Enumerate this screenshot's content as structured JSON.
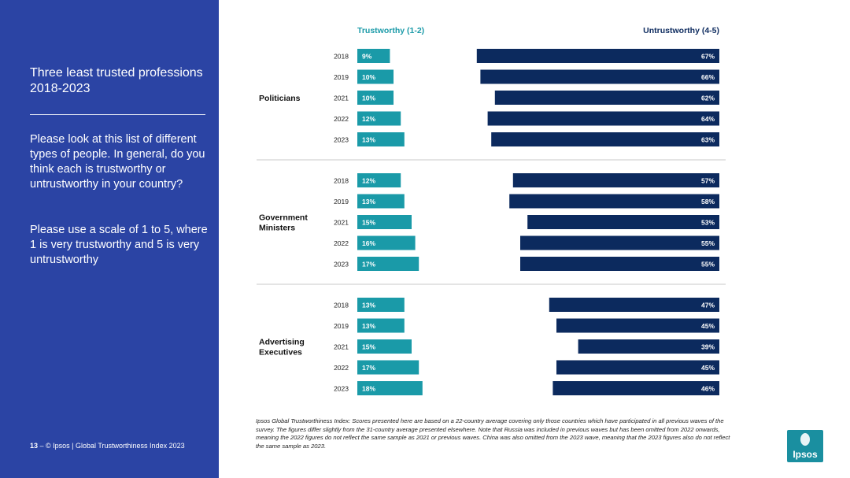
{
  "sidebar": {
    "title": "Three least trusted professions 2018-2023",
    "question": "Please look at this list of different types of people. In general, do you think each is trustworthy or untrustworthy in your country?",
    "scale": "Please use a scale of 1 to 5, where 1 is very trustworthy and 5 is very untrustworthy",
    "page_number": "13",
    "footer_text": "– © Ipsos | Global Trustworthiness Index 2023"
  },
  "headers": {
    "trustworthy": "Trustworthy (1-2)",
    "untrustworthy": "Untrustworthy (4-5)"
  },
  "colors": {
    "trustworthy": "#1a9aa8",
    "untrustworthy": "#0c2a5e",
    "sidebar": "#2b44a4"
  },
  "chart_data": {
    "type": "bar",
    "title": "Three least trusted professions 2018-2023",
    "years": [
      "2018",
      "2019",
      "2021",
      "2022",
      "2023"
    ],
    "groups": [
      {
        "name": "Politicians",
        "trustworthy": [
          9,
          10,
          10,
          12,
          13
        ],
        "untrustworthy": [
          67,
          66,
          62,
          64,
          63
        ]
      },
      {
        "name": "Government Ministers",
        "trustworthy": [
          12,
          13,
          15,
          16,
          17
        ],
        "untrustworthy": [
          57,
          58,
          53,
          55,
          55
        ]
      },
      {
        "name": "Advertising Executives",
        "trustworthy": [
          13,
          13,
          15,
          17,
          18
        ],
        "untrustworthy": [
          47,
          45,
          39,
          45,
          46
        ]
      }
    ],
    "value_suffix": "%"
  },
  "footnote": "Ipsos Global Trustworthiness Index: Scores presented here are based on a 22-country average covering only those countries which have participated in all previous waves of the survey. The figures differ slightly from the 31-country average presented elsewhere. Note that Russia was included in previous waves but has been omitted from 2022 onwards, meaning the 2022 figures do not reflect the same sample as 2021 or previous waves. China was also omitted from the 2023 wave, meaning that the 2023 figures also do not reflect the same sample as 2023.",
  "logo": {
    "text": "Ipsos"
  }
}
